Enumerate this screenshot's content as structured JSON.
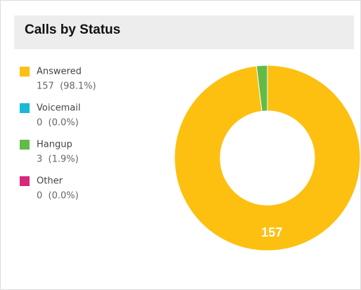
{
  "chart_data": {
    "type": "donut",
    "title": "Calls by Status",
    "categories": [
      "Answered",
      "Voicemail",
      "Hangup",
      "Other"
    ],
    "values": [
      157,
      0,
      3,
      0
    ],
    "value_labels": [
      "157  (98.1%)",
      "0  (0.0%)",
      "3  (1.9%)",
      "0  (0.0%)"
    ],
    "colors": [
      "#fdc010",
      "#17b8d8",
      "#62bb46",
      "#d6287c"
    ]
  }
}
